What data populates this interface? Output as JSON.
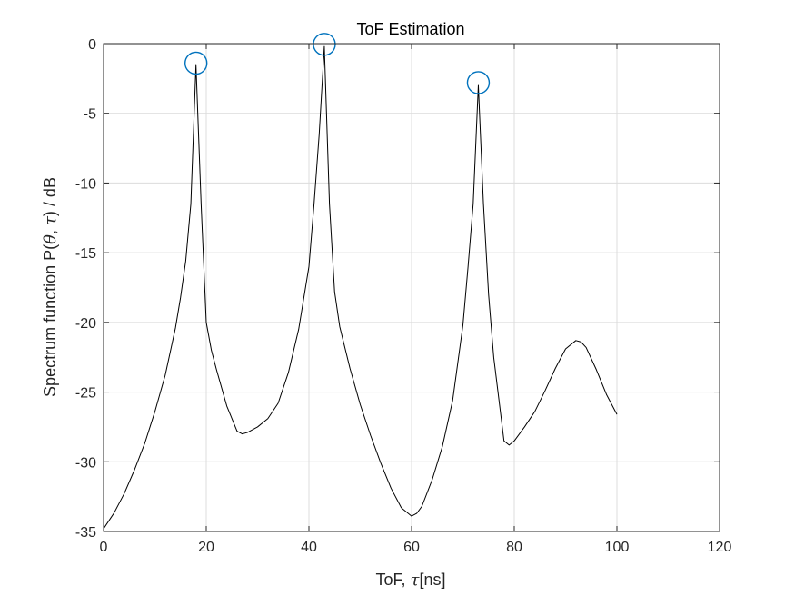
{
  "chart_data": {
    "type": "line",
    "title": "ToF Estimation",
    "xlabel": {
      "prefix": "ToF, ",
      "symbol": "τ",
      "suffix": "[ns]"
    },
    "ylabel": {
      "p1": "Spectrum function P(",
      "theta": "θ",
      "mid": ", ",
      "tau": "τ",
      "p2": ")  / dB"
    },
    "xlim": [
      0,
      120
    ],
    "ylim": [
      -35,
      0
    ],
    "xticks": [
      0,
      20,
      40,
      60,
      80,
      100,
      120
    ],
    "yticks": [
      -35,
      -30,
      -25,
      -20,
      -15,
      -10,
      -5,
      0
    ],
    "grid": true,
    "colors": {
      "line": "#000000",
      "markers": "#0072BD",
      "grid": "#dcdcdc",
      "axes": "#262626"
    },
    "series": [
      {
        "x": [
          0,
          2,
          4,
          6,
          8,
          10,
          12,
          14,
          15,
          16,
          17,
          18,
          19,
          20,
          21,
          22,
          24,
          26,
          27,
          28,
          30,
          32,
          34,
          36,
          38,
          40,
          41,
          42,
          43,
          44,
          45,
          46,
          48,
          50,
          52,
          54,
          56,
          58,
          60,
          61,
          62,
          64,
          66,
          68,
          70,
          71,
          72,
          73,
          74,
          75,
          76,
          78,
          79,
          80,
          82,
          84,
          86,
          88,
          90,
          92,
          93,
          94,
          96,
          98,
          100
        ],
        "y": [
          -34.8,
          -33.7,
          -32.3,
          -30.6,
          -28.7,
          -26.4,
          -23.8,
          -20.4,
          -18.2,
          -15.6,
          -11.5,
          -1.5,
          -11.5,
          -20.0,
          -22.0,
          -23.4,
          -26.0,
          -27.8,
          -28.0,
          -27.9,
          -27.5,
          -26.9,
          -25.8,
          -23.6,
          -20.5,
          -16.0,
          -11.5,
          -6.5,
          -0.2,
          -11.5,
          -17.8,
          -20.3,
          -23.3,
          -25.9,
          -28.1,
          -30.1,
          -31.9,
          -33.3,
          -33.9,
          -33.7,
          -33.2,
          -31.3,
          -28.9,
          -25.6,
          -20.2,
          -16.0,
          -11.5,
          -3.0,
          -11.5,
          -18.0,
          -22.5,
          -28.5,
          -28.8,
          -28.5,
          -27.5,
          -26.4,
          -24.9,
          -23.3,
          -21.9,
          -21.3,
          -21.4,
          -21.8,
          -23.4,
          -25.2,
          -26.6
        ]
      }
    ],
    "peaks": [
      {
        "x": 18,
        "y": -1.4
      },
      {
        "x": 43,
        "y": -0.05
      },
      {
        "x": 73,
        "y": -2.8
      }
    ]
  }
}
